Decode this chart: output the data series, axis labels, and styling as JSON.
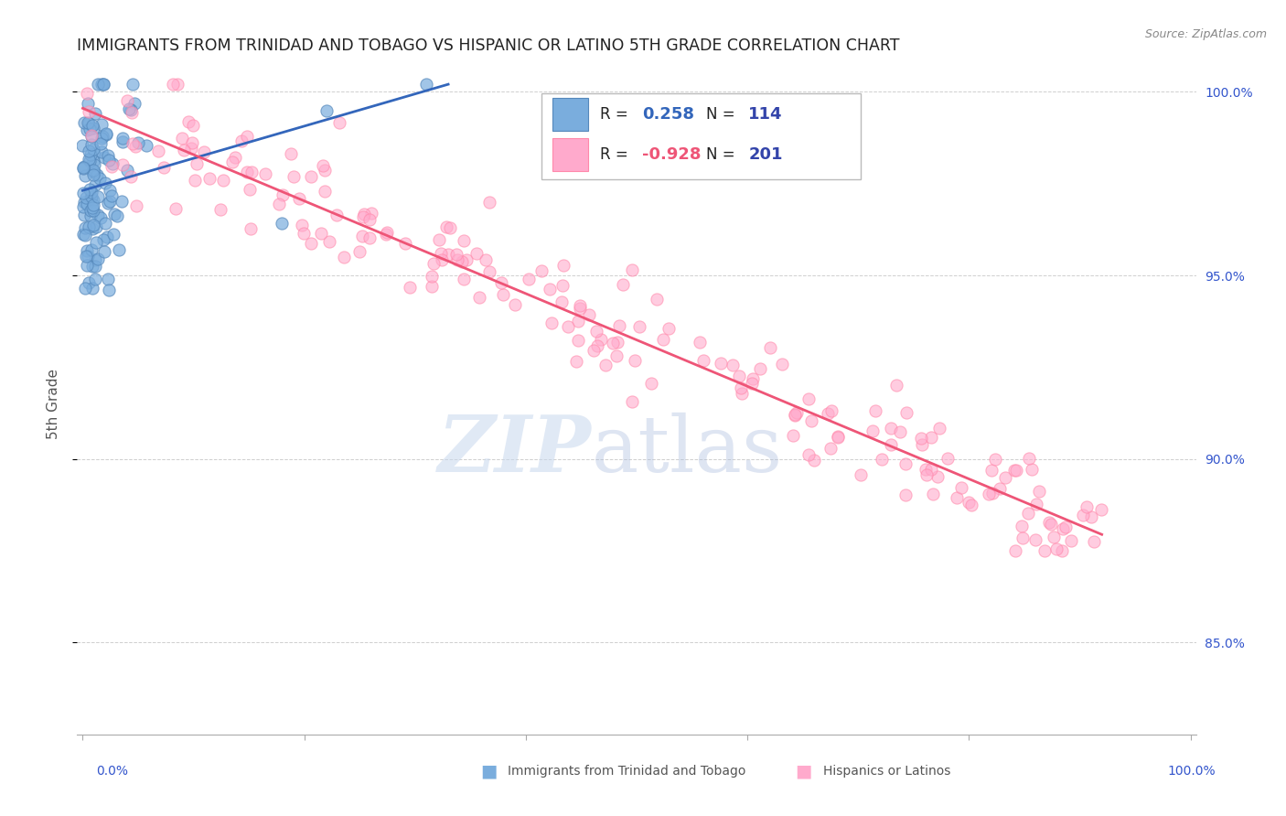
{
  "title": "IMMIGRANTS FROM TRINIDAD AND TOBAGO VS HISPANIC OR LATINO 5TH GRADE CORRELATION CHART",
  "source": "Source: ZipAtlas.com",
  "ylabel": "5th Grade",
  "blue_R": 0.258,
  "blue_N": 114,
  "pink_R": -0.928,
  "pink_N": 201,
  "blue_color": "#7AADDD",
  "pink_color": "#FFAACC",
  "blue_edge_color": "#5588BB",
  "pink_edge_color": "#FF88AA",
  "blue_line_color": "#3366BB",
  "pink_line_color": "#EE5577",
  "legend_R_blue_color": "#3366BB",
  "legend_R_pink_color": "#EE5577",
  "legend_N_color": "#3344AA",
  "background_color": "#FFFFFF",
  "grid_color": "#BBBBBB",
  "title_color": "#222222",
  "right_axis_color": "#3355CC",
  "bottom_label_color": "#666666",
  "figsize": [
    14.06,
    8.92
  ],
  "dpi": 100,
  "ylim_low": 0.825,
  "ylim_high": 1.005,
  "yticks": [
    0.85,
    0.9,
    0.95,
    1.0
  ]
}
